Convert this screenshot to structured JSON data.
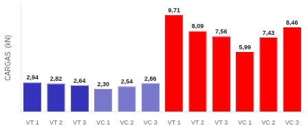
{
  "chart_data": {
    "type": "bar",
    "categories": [
      "VT 1",
      "VT 2",
      "VT 3",
      "VC 1",
      "VC 2",
      "VC 3",
      "VT 1",
      "VT 2",
      "VT 3",
      "VC 1",
      "VC 2",
      "VC 3"
    ],
    "values": [
      2.94,
      2.82,
      2.64,
      2.3,
      2.54,
      2.86,
      9.71,
      8.09,
      7.56,
      5.99,
      7.43,
      8.46
    ],
    "value_labels": [
      "2,94",
      "2,82",
      "2,64",
      "2,30",
      "2,54",
      "2,86",
      "9,71",
      "8,09",
      "7,56",
      "5,99",
      "7,43",
      "8,46"
    ],
    "data_labels": true,
    "colors": [
      "#3333bb",
      "#3333bb",
      "#3333bb",
      "#7777cc",
      "#7777cc",
      "#7777cc",
      "#ff0000",
      "#ff0000",
      "#ff0000",
      "#ff0000",
      "#ff0000",
      "#ff0000"
    ],
    "ylabel": "CARGAS  (kN)",
    "ylim": [
      0,
      10.8
    ],
    "tick_labels": "x",
    "grid": false
  }
}
